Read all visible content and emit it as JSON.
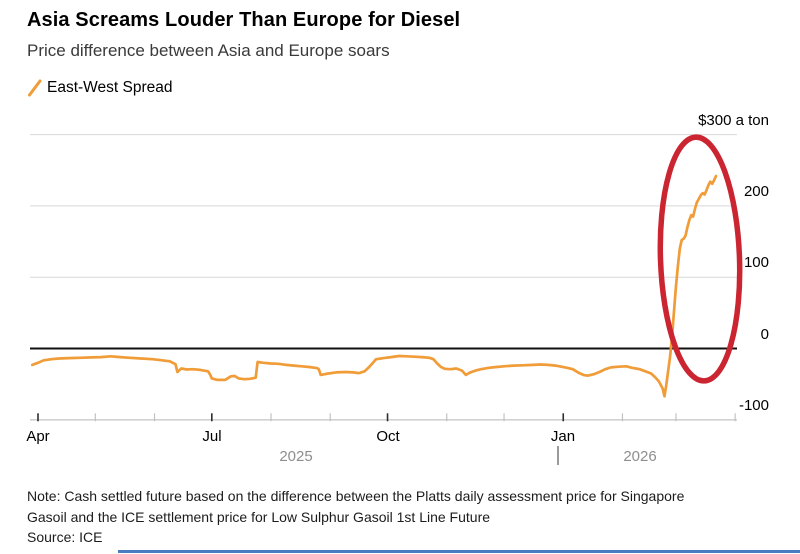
{
  "header": {
    "title": "Asia Screams Louder Than Europe for Diesel",
    "subtitle": "Price difference between Asia and Europe soars"
  },
  "legend": {
    "label": "East-West Spread",
    "swatch_color": "#f09c38"
  },
  "chart_data": {
    "type": "line",
    "title": "Asia Screams Louder Than Europe for Diesel",
    "subtitle": "Price difference between Asia and Europe soars",
    "unit": "$ a ton",
    "ylim": [
      -100,
      300
    ],
    "grid": "horizontal",
    "legend_position": "top-left",
    "y_ticks": [
      {
        "value": 300,
        "label": "$300 a ton"
      },
      {
        "value": 200,
        "label": "200"
      },
      {
        "value": 100,
        "label": "100"
      },
      {
        "value": 0,
        "label": "0"
      },
      {
        "value": -100,
        "label": "-100"
      }
    ],
    "x_ticks": [
      {
        "date": "2025-04-01",
        "label": "Apr",
        "major": true
      },
      {
        "date": "2025-05-01",
        "label": "",
        "major": false
      },
      {
        "date": "2025-06-01",
        "label": "",
        "major": false
      },
      {
        "date": "2025-07-01",
        "label": "Jul",
        "major": true
      },
      {
        "date": "2025-08-01",
        "label": "",
        "major": false
      },
      {
        "date": "2025-09-01",
        "label": "",
        "major": false
      },
      {
        "date": "2025-10-01",
        "label": "Oct",
        "major": true
      },
      {
        "date": "2025-11-01",
        "label": "",
        "major": false
      },
      {
        "date": "2025-12-01",
        "label": "",
        "major": false
      },
      {
        "date": "2026-01-01",
        "label": "Jan",
        "major": true
      },
      {
        "date": "2026-02-01",
        "label": "",
        "major": false
      },
      {
        "date": "2026-03-01",
        "label": "",
        "major": false
      },
      {
        "date": "2026-04-01",
        "label": "",
        "major": false
      }
    ],
    "year_labels": [
      {
        "label": "2025"
      },
      {
        "label": "2026"
      }
    ],
    "zero_line": true,
    "series": [
      {
        "name": "East-West Spread",
        "color": "#f09c38",
        "points": [
          [
            "2025-03-29",
            -23
          ],
          [
            "2025-04-01",
            -20
          ],
          [
            "2025-04-04",
            -16.5
          ],
          [
            "2025-04-08",
            -15
          ],
          [
            "2025-04-12",
            -14
          ],
          [
            "2025-04-17",
            -13.5
          ],
          [
            "2025-04-23",
            -13
          ],
          [
            "2025-04-29",
            -12.5
          ],
          [
            "2025-05-04",
            -12
          ],
          [
            "2025-05-09",
            -11
          ],
          [
            "2025-05-14",
            -12
          ],
          [
            "2025-05-19",
            -13
          ],
          [
            "2025-05-25",
            -14
          ],
          [
            "2025-05-31",
            -15
          ],
          [
            "2025-06-05",
            -16.5
          ],
          [
            "2025-06-09",
            -18
          ],
          [
            "2025-06-12",
            -22
          ],
          [
            "2025-06-13",
            -33
          ],
          [
            "2025-06-15",
            -28
          ],
          [
            "2025-06-18",
            -29.5
          ],
          [
            "2025-06-21",
            -29
          ],
          [
            "2025-06-25",
            -30
          ],
          [
            "2025-06-29",
            -32
          ],
          [
            "2025-06-30",
            -36
          ],
          [
            "2025-07-01",
            -42
          ],
          [
            "2025-07-04",
            -44
          ],
          [
            "2025-07-08",
            -44
          ],
          [
            "2025-07-11",
            -39
          ],
          [
            "2025-07-13",
            -38.5
          ],
          [
            "2025-07-15",
            -42
          ],
          [
            "2025-07-18",
            -43
          ],
          [
            "2025-07-21",
            -42.5
          ],
          [
            "2025-07-24",
            -41
          ],
          [
            "2025-07-25",
            -19
          ],
          [
            "2025-07-28",
            -20
          ],
          [
            "2025-08-01",
            -21
          ],
          [
            "2025-08-05",
            -21.5
          ],
          [
            "2025-08-09",
            -23
          ],
          [
            "2025-08-13",
            -24
          ],
          [
            "2025-08-17",
            -25
          ],
          [
            "2025-08-21",
            -26
          ],
          [
            "2025-08-25",
            -27.5
          ],
          [
            "2025-08-26",
            -29
          ],
          [
            "2025-08-27",
            -37
          ],
          [
            "2025-08-31",
            -35
          ],
          [
            "2025-09-04",
            -33.5
          ],
          [
            "2025-09-09",
            -33
          ],
          [
            "2025-09-13",
            -33.5
          ],
          [
            "2025-09-16",
            -34.5
          ],
          [
            "2025-09-19",
            -32
          ],
          [
            "2025-09-21",
            -27
          ],
          [
            "2025-09-23",
            -21
          ],
          [
            "2025-09-25",
            -15
          ],
          [
            "2025-09-29",
            -13.5
          ],
          [
            "2025-10-03",
            -12
          ],
          [
            "2025-10-07",
            -10.5
          ],
          [
            "2025-10-11",
            -11
          ],
          [
            "2025-10-15",
            -11.5
          ],
          [
            "2025-10-19",
            -12
          ],
          [
            "2025-10-23",
            -13
          ],
          [
            "2025-10-25",
            -15
          ],
          [
            "2025-10-27",
            -21
          ],
          [
            "2025-10-29",
            -26
          ],
          [
            "2025-10-31",
            -28.5
          ],
          [
            "2025-11-03",
            -29
          ],
          [
            "2025-11-06",
            -28
          ],
          [
            "2025-11-09",
            -31
          ],
          [
            "2025-11-11",
            -37
          ],
          [
            "2025-11-13",
            -34
          ],
          [
            "2025-11-16",
            -31
          ],
          [
            "2025-11-19",
            -29
          ],
          [
            "2025-11-23",
            -27
          ],
          [
            "2025-11-27",
            -26
          ],
          [
            "2025-12-01",
            -25
          ],
          [
            "2025-12-06",
            -24
          ],
          [
            "2025-12-11",
            -23.5
          ],
          [
            "2025-12-16",
            -23
          ],
          [
            "2025-12-20",
            -22.5
          ],
          [
            "2025-12-24",
            -23
          ],
          [
            "2025-12-28",
            -24
          ],
          [
            "2025-12-31",
            -25.5
          ],
          [
            "2026-01-03",
            -27
          ],
          [
            "2026-01-06",
            -29
          ],
          [
            "2026-01-09",
            -34
          ],
          [
            "2026-01-12",
            -37.5
          ],
          [
            "2026-01-14",
            -38
          ],
          [
            "2026-01-17",
            -36
          ],
          [
            "2026-01-20",
            -33
          ],
          [
            "2026-01-23",
            -29
          ],
          [
            "2026-01-26",
            -26.5
          ],
          [
            "2026-01-30",
            -25.5
          ],
          [
            "2026-02-03",
            -25
          ],
          [
            "2026-02-06",
            -27
          ],
          [
            "2026-02-10",
            -29
          ],
          [
            "2026-02-13",
            -32
          ],
          [
            "2026-02-16",
            -35
          ],
          [
            "2026-02-18",
            -40
          ],
          [
            "2026-02-20",
            -46
          ],
          [
            "2026-02-22",
            -56
          ],
          [
            "2026-02-23",
            -67
          ],
          [
            "2026-02-24",
            -50
          ],
          [
            "2026-02-25",
            -30
          ],
          [
            "2026-02-26",
            -10
          ],
          [
            "2026-02-27",
            18
          ],
          [
            "2026-02-28",
            52
          ],
          [
            "2026-03-01",
            86
          ],
          [
            "2026-03-02",
            116
          ],
          [
            "2026-03-03",
            140
          ],
          [
            "2026-03-04",
            152
          ],
          [
            "2026-03-05",
            154
          ],
          [
            "2026-03-06",
            158
          ],
          [
            "2026-03-07",
            170
          ],
          [
            "2026-03-08",
            180
          ],
          [
            "2026-03-09",
            187
          ],
          [
            "2026-03-10",
            185
          ],
          [
            "2026-03-11",
            196
          ],
          [
            "2026-03-12",
            205
          ],
          [
            "2026-03-13",
            210
          ],
          [
            "2026-03-14",
            215
          ],
          [
            "2026-03-15",
            218
          ],
          [
            "2026-03-16",
            216
          ],
          [
            "2026-03-17",
            222
          ],
          [
            "2026-03-18",
            229
          ],
          [
            "2026-03-19",
            234
          ],
          [
            "2026-03-20",
            231
          ],
          [
            "2026-03-21",
            236
          ],
          [
            "2026-03-22",
            242
          ]
        ]
      }
    ],
    "annotation": {
      "shape": "ellipse",
      "color": "#cb2531",
      "meaning": "highlight of the recent spike in the spread"
    }
  },
  "note": {
    "lines": [
      "Note: Cash settled future based on the difference between the Platts daily assessment price for Singapore",
      "Gasoil and the ICE settlement price for Low Sulphur Gasoil 1st Line Future"
    ],
    "source": "Source: ICE"
  }
}
